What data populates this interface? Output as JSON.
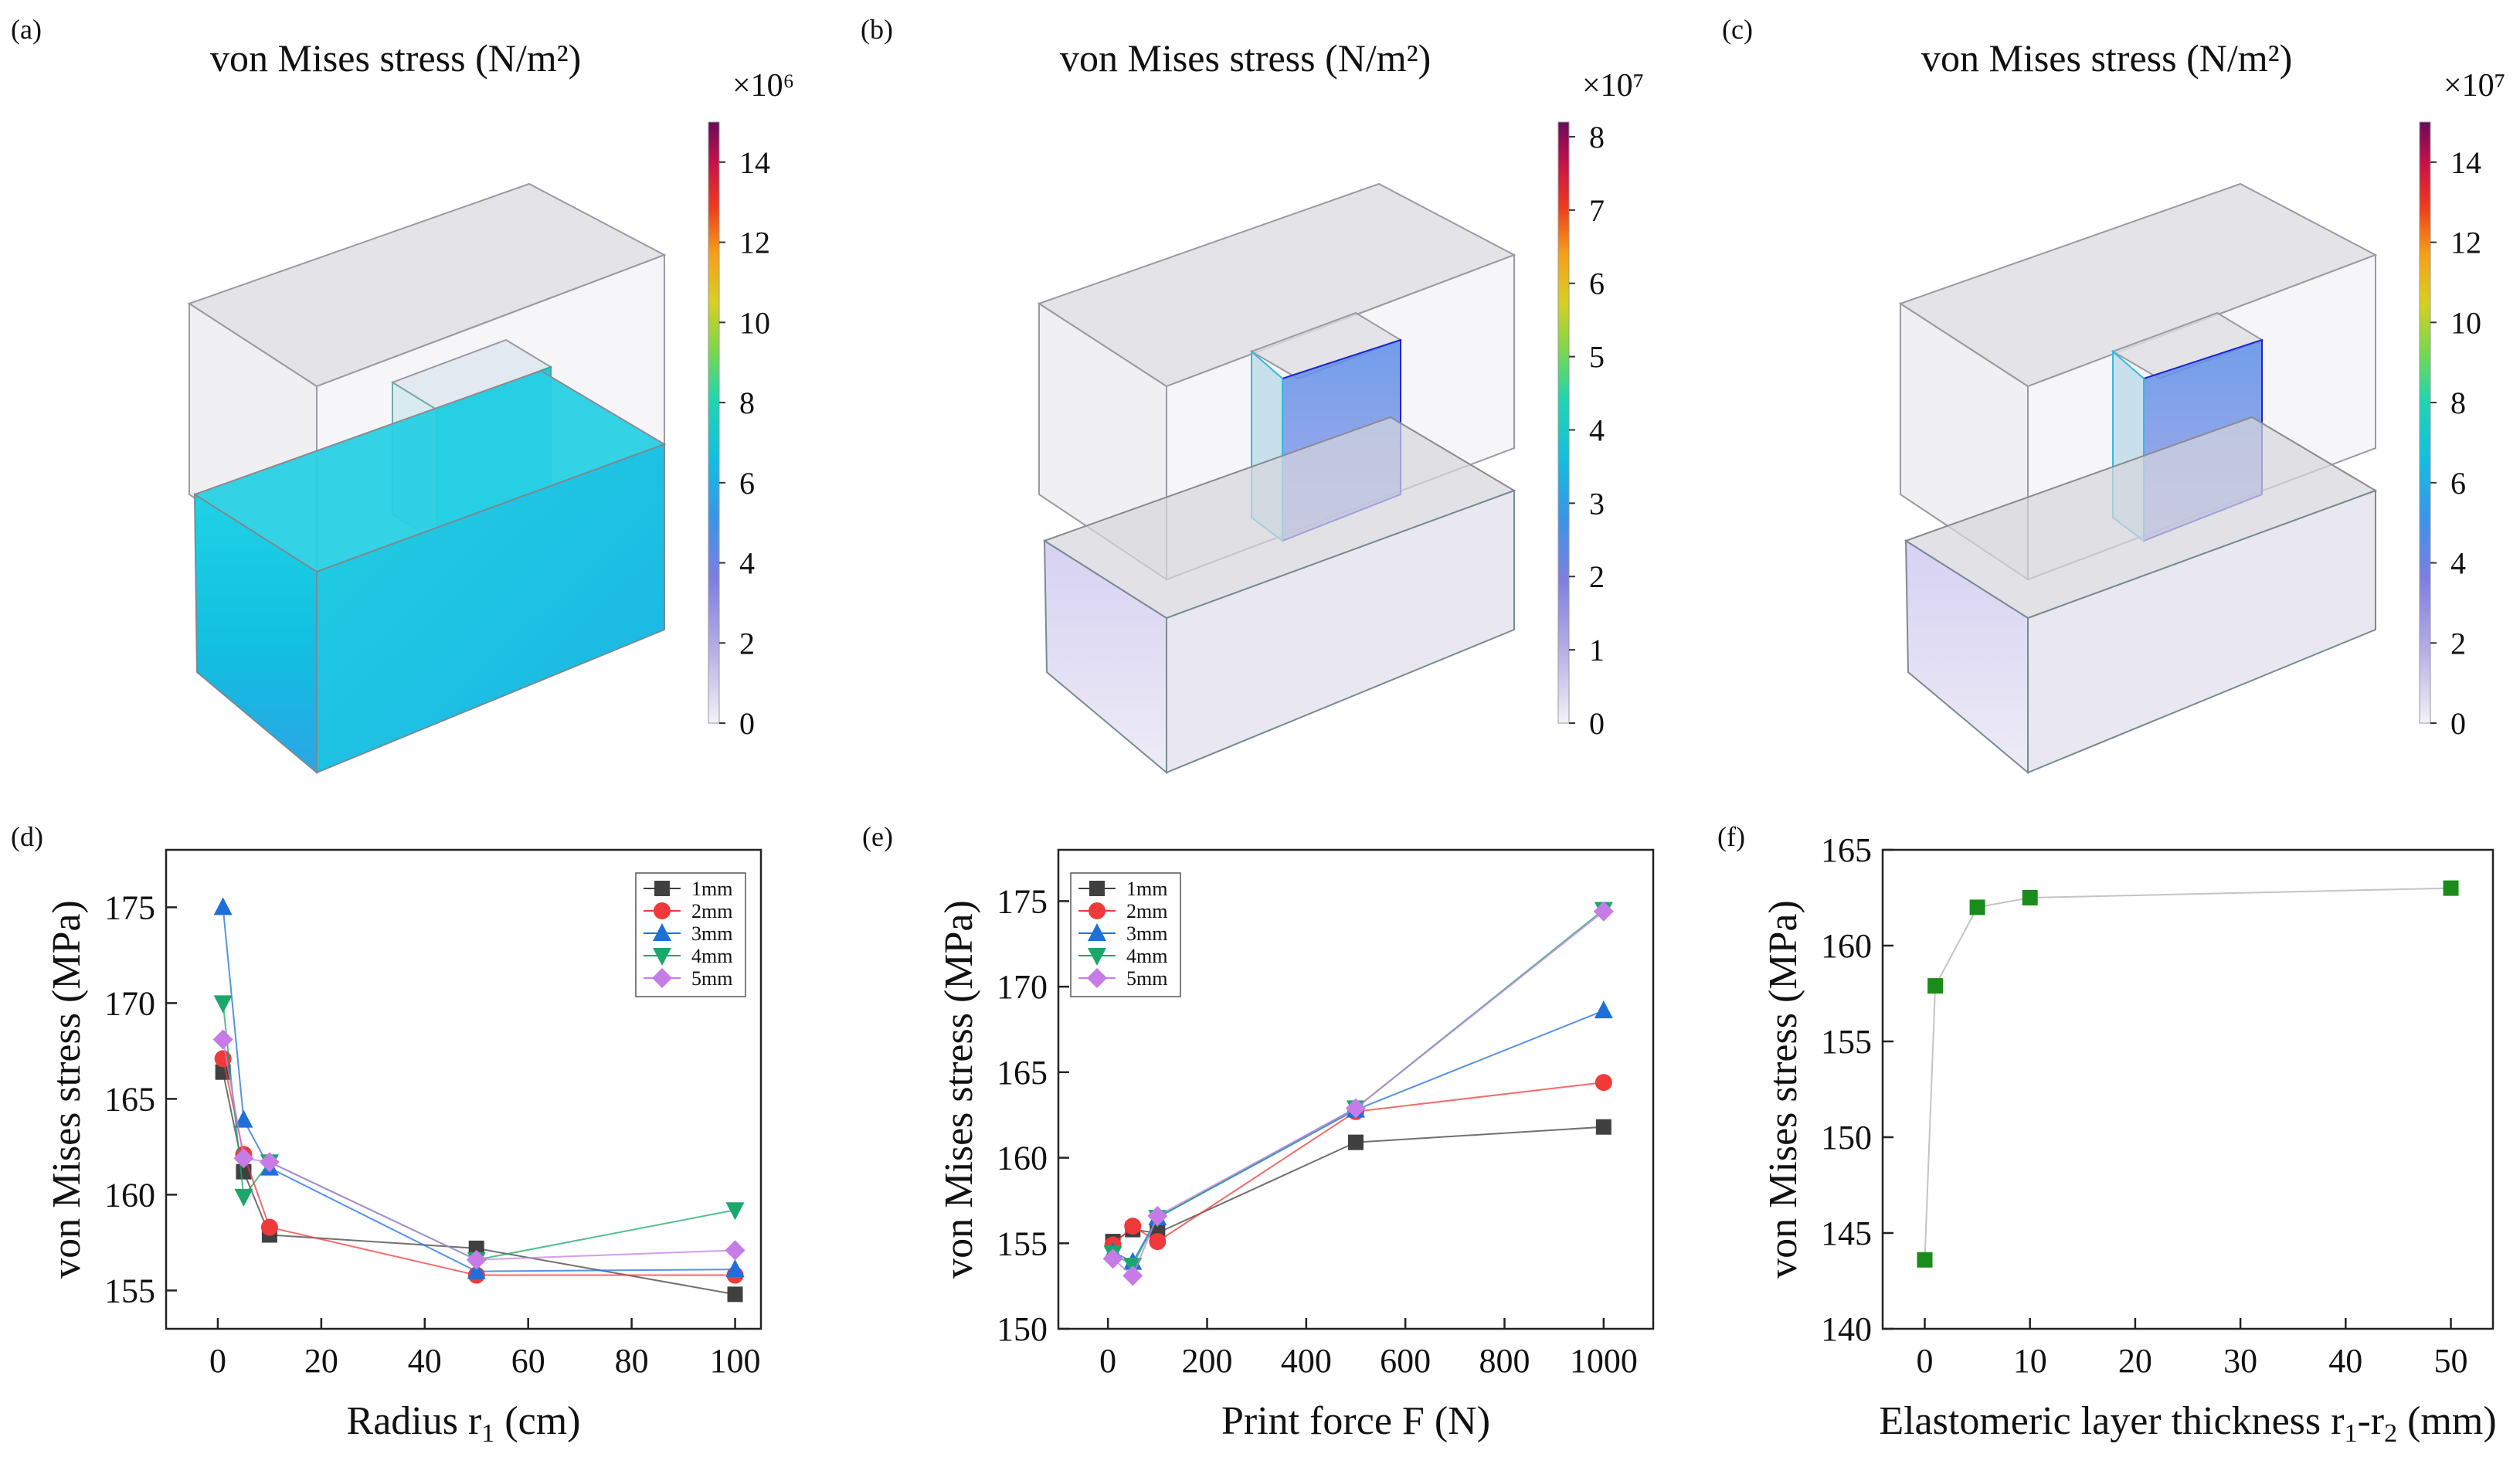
{
  "figure": {
    "panels_3d": [
      {
        "tag": "(a)",
        "title": "von Mises stress (N/m²)",
        "multiplier": "×10⁶",
        "ticks": [
          "0",
          "2",
          "4",
          "6",
          "8",
          "10",
          "12",
          "14"
        ],
        "cmax": 15,
        "block": "stressed"
      },
      {
        "tag": "(b)",
        "title": "von Mises stress (N/m²)",
        "multiplier": "×10⁷",
        "ticks": [
          "0",
          "1",
          "2",
          "3",
          "4",
          "5",
          "6",
          "7",
          "8"
        ],
        "cmax": 8.2,
        "block": "light"
      },
      {
        "tag": "(c)",
        "title": "von Mises stress (N/m²)",
        "multiplier": "×10⁷",
        "ticks": [
          "0",
          "2",
          "4",
          "6",
          "8",
          "10",
          "12",
          "14"
        ],
        "cmax": 15,
        "block": "light"
      }
    ]
  },
  "chart_data": [
    {
      "tag": "(d)",
      "type": "line",
      "title": "",
      "xlabel": "Radius r",
      "xlabel_sub": "1",
      "xlabel_tail": " (cm)",
      "ylabel": "von Mises stress (MPa)",
      "xlim": [
        -10,
        105
      ],
      "ylim": [
        153,
        178
      ],
      "xticks": [
        0,
        20,
        40,
        60,
        80,
        100
      ],
      "yticks": [
        155,
        160,
        165,
        170,
        175
      ],
      "legend": "top-right",
      "series": [
        {
          "name": "1mm",
          "color": "#404040",
          "marker": "square",
          "x": [
            1,
            5,
            10,
            50,
            100
          ],
          "y": [
            166.4,
            161.2,
            157.9,
            157.2,
            154.8
          ]
        },
        {
          "name": "2mm",
          "color": "#f03a3a",
          "marker": "circle",
          "x": [
            1,
            5,
            10,
            50,
            100
          ],
          "y": [
            167.1,
            162.1,
            158.3,
            155.8,
            155.8
          ]
        },
        {
          "name": "3mm",
          "color": "#1e6fd9",
          "marker": "triangle-up",
          "x": [
            1,
            5,
            10,
            50,
            100
          ],
          "y": [
            175.0,
            163.9,
            161.4,
            156.0,
            156.1
          ]
        },
        {
          "name": "4mm",
          "color": "#1aa86a",
          "marker": "triangle-down",
          "x": [
            1,
            5,
            10,
            50,
            100
          ],
          "y": [
            170.0,
            159.9,
            161.7,
            156.6,
            159.2
          ]
        },
        {
          "name": "5mm",
          "color": "#c77be6",
          "marker": "diamond",
          "x": [
            1,
            5,
            10,
            50,
            100
          ],
          "y": [
            168.1,
            161.9,
            161.7,
            156.6,
            157.1
          ]
        }
      ]
    },
    {
      "tag": "(e)",
      "type": "line",
      "title": "",
      "xlabel": "Print force F (N)",
      "xlabel_sub": "",
      "xlabel_tail": "",
      "ylabel": "von Mises stress (MPa)",
      "xlim": [
        -100,
        1100
      ],
      "ylim": [
        150,
        178
      ],
      "xticks": [
        0,
        200,
        400,
        600,
        800,
        1000
      ],
      "yticks": [
        150,
        155,
        160,
        165,
        170,
        175
      ],
      "legend": "top-left",
      "series": [
        {
          "name": "1mm",
          "color": "#404040",
          "marker": "square",
          "x": [
            10,
            50,
            100,
            500,
            1000
          ],
          "y": [
            155.1,
            155.8,
            155.6,
            160.9,
            161.8
          ]
        },
        {
          "name": "2mm",
          "color": "#f03a3a",
          "marker": "circle",
          "x": [
            10,
            50,
            100,
            500,
            1000
          ],
          "y": [
            154.9,
            156.0,
            155.1,
            162.7,
            164.4
          ]
        },
        {
          "name": "3mm",
          "color": "#1e6fd9",
          "marker": "triangle-up",
          "x": [
            10,
            50,
            100,
            500,
            1000
          ],
          "y": [
            154.5,
            153.9,
            156.5,
            162.8,
            168.6
          ]
        },
        {
          "name": "4mm",
          "color": "#1aa86a",
          "marker": "triangle-down",
          "x": [
            10,
            50,
            100,
            500,
            1000
          ],
          "y": [
            154.4,
            153.7,
            156.5,
            162.9,
            174.5
          ]
        },
        {
          "name": "5mm",
          "color": "#c77be6",
          "marker": "diamond",
          "x": [
            10,
            50,
            100,
            500,
            1000
          ],
          "y": [
            154.1,
            153.1,
            156.6,
            162.9,
            174.4
          ]
        }
      ]
    },
    {
      "tag": "(f)",
      "type": "line",
      "title": "",
      "xlabel": "Elastomeric layer thickness r",
      "xlabel_sub": "1",
      "xlabel_tail": "-r",
      "xlabel_sub2": "2",
      "xlabel_tail2": " (mm)",
      "ylabel": "von Mises stress (MPa)",
      "xlim": [
        -4,
        54
      ],
      "ylim": [
        140,
        165
      ],
      "xticks": [
        0,
        10,
        20,
        30,
        40,
        50
      ],
      "yticks": [
        140,
        145,
        150,
        155,
        160,
        165
      ],
      "legend": "none",
      "series": [
        {
          "name": "",
          "color": "#1a8c1a",
          "marker": "square",
          "x": [
            0,
            1,
            5,
            10,
            50
          ],
          "y": [
            143.6,
            157.9,
            162.0,
            162.5,
            163.0
          ]
        }
      ]
    }
  ]
}
